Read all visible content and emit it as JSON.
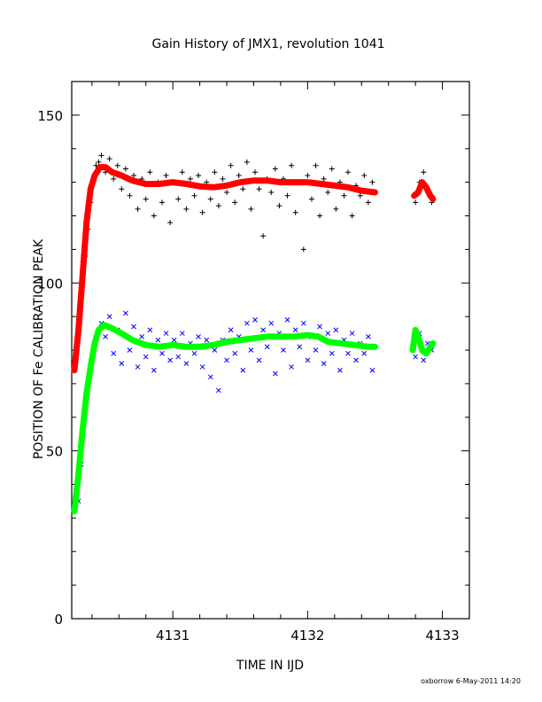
{
  "chart_data": {
    "type": "scatter",
    "title": "Gain History of JMX1, revolution 1041",
    "xlabel": "TIME IN IJD",
    "ylabel": "POSITION OF Fe CALIBRATION PEAK",
    "xlim": [
      4130.25,
      4133.2
    ],
    "ylim": [
      0,
      160
    ],
    "x_ticks": [
      "4131",
      "4132",
      "4133"
    ],
    "y_ticks": [
      "0",
      "50",
      "100",
      "150"
    ],
    "footer": "oxborrow  6-May-2011 14:20",
    "colors": {
      "upper_points": "#000000",
      "upper_smooth": "#ff0000",
      "lower_points": "#0000ff",
      "lower_smooth": "#00ff00"
    },
    "series": [
      {
        "marker": "plus",
        "color": "#000000",
        "points": [
          [
            4130.27,
            75
          ],
          [
            4130.29,
            82
          ],
          [
            4130.31,
            88
          ],
          [
            4130.33,
            100
          ],
          [
            4130.35,
            108
          ],
          [
            4130.37,
            116
          ],
          [
            4130.39,
            124
          ],
          [
            4130.41,
            130
          ],
          [
            4130.43,
            135
          ],
          [
            4130.45,
            136
          ],
          [
            4130.47,
            138
          ],
          [
            4130.5,
            133
          ],
          [
            4130.53,
            137
          ],
          [
            4130.56,
            131
          ],
          [
            4130.59,
            135
          ],
          [
            4130.62,
            128
          ],
          [
            4130.65,
            134
          ],
          [
            4130.68,
            126
          ],
          [
            4130.71,
            132
          ],
          [
            4130.74,
            122
          ],
          [
            4130.77,
            131
          ],
          [
            4130.8,
            125
          ],
          [
            4130.83,
            133
          ],
          [
            4130.86,
            120
          ],
          [
            4130.89,
            130
          ],
          [
            4130.92,
            124
          ],
          [
            4130.95,
            132
          ],
          [
            4130.98,
            118
          ],
          [
            4131.01,
            130
          ],
          [
            4131.04,
            125
          ],
          [
            4131.07,
            133
          ],
          [
            4131.1,
            122
          ],
          [
            4131.13,
            131
          ],
          [
            4131.16,
            126
          ],
          [
            4131.19,
            132
          ],
          [
            4131.22,
            121
          ],
          [
            4131.25,
            130
          ],
          [
            4131.28,
            125
          ],
          [
            4131.31,
            133
          ],
          [
            4131.34,
            123
          ],
          [
            4131.37,
            131
          ],
          [
            4131.4,
            127
          ],
          [
            4131.43,
            135
          ],
          [
            4131.46,
            124
          ],
          [
            4131.49,
            132
          ],
          [
            4131.52,
            128
          ],
          [
            4131.55,
            136
          ],
          [
            4131.58,
            122
          ],
          [
            4131.61,
            133
          ],
          [
            4131.64,
            128
          ],
          [
            4131.67,
            114
          ],
          [
            4131.7,
            131
          ],
          [
            4131.73,
            127
          ],
          [
            4131.76,
            134
          ],
          [
            4131.79,
            123
          ],
          [
            4131.82,
            131
          ],
          [
            4131.85,
            126
          ],
          [
            4131.88,
            135
          ],
          [
            4131.91,
            121
          ],
          [
            4131.94,
            130
          ],
          [
            4131.97,
            110
          ],
          [
            4132.0,
            132
          ],
          [
            4132.03,
            125
          ],
          [
            4132.06,
            135
          ],
          [
            4132.09,
            120
          ],
          [
            4132.12,
            131
          ],
          [
            4132.15,
            127
          ],
          [
            4132.18,
            134
          ],
          [
            4132.21,
            122
          ],
          [
            4132.24,
            130
          ],
          [
            4132.27,
            126
          ],
          [
            4132.3,
            133
          ],
          [
            4132.33,
            120
          ],
          [
            4132.36,
            129
          ],
          [
            4132.39,
            126
          ],
          [
            4132.42,
            132
          ],
          [
            4132.45,
            124
          ],
          [
            4132.48,
            130
          ],
          [
            4132.8,
            124
          ],
          [
            4132.83,
            130
          ],
          [
            4132.86,
            133
          ],
          [
            4132.89,
            127
          ],
          [
            4132.92,
            124
          ]
        ]
      },
      {
        "marker": "cross",
        "color": "#0000ff",
        "points": [
          [
            4130.3,
            35
          ],
          [
            4130.32,
            46
          ],
          [
            4130.34,
            58
          ],
          [
            4130.36,
            66
          ],
          [
            4130.38,
            72
          ],
          [
            4130.4,
            77
          ],
          [
            4130.42,
            81
          ],
          [
            4130.44,
            85
          ],
          [
            4130.47,
            88
          ],
          [
            4130.5,
            84
          ],
          [
            4130.53,
            90
          ],
          [
            4130.56,
            79
          ],
          [
            4130.59,
            86
          ],
          [
            4130.62,
            76
          ],
          [
            4130.65,
            91
          ],
          [
            4130.68,
            80
          ],
          [
            4130.71,
            87
          ],
          [
            4130.74,
            75
          ],
          [
            4130.77,
            84
          ],
          [
            4130.8,
            78
          ],
          [
            4130.83,
            86
          ],
          [
            4130.86,
            74
          ],
          [
            4130.89,
            83
          ],
          [
            4130.92,
            79
          ],
          [
            4130.95,
            85
          ],
          [
            4130.98,
            77
          ],
          [
            4131.01,
            83
          ],
          [
            4131.04,
            78
          ],
          [
            4131.07,
            85
          ],
          [
            4131.1,
            76
          ],
          [
            4131.13,
            82
          ],
          [
            4131.16,
            79
          ],
          [
            4131.19,
            84
          ],
          [
            4131.22,
            75
          ],
          [
            4131.25,
            83
          ],
          [
            4131.28,
            72
          ],
          [
            4131.31,
            80
          ],
          [
            4131.34,
            68
          ],
          [
            4131.37,
            83
          ],
          [
            4131.4,
            77
          ],
          [
            4131.43,
            86
          ],
          [
            4131.46,
            79
          ],
          [
            4131.49,
            84
          ],
          [
            4131.52,
            74
          ],
          [
            4131.55,
            88
          ],
          [
            4131.58,
            80
          ],
          [
            4131.61,
            89
          ],
          [
            4131.64,
            77
          ],
          [
            4131.67,
            86
          ],
          [
            4131.7,
            81
          ],
          [
            4131.73,
            88
          ],
          [
            4131.76,
            73
          ],
          [
            4131.79,
            85
          ],
          [
            4131.82,
            80
          ],
          [
            4131.85,
            89
          ],
          [
            4131.88,
            75
          ],
          [
            4131.91,
            86
          ],
          [
            4131.94,
            81
          ],
          [
            4131.97,
            88
          ],
          [
            4132.0,
            77
          ],
          [
            4132.03,
            84
          ],
          [
            4132.06,
            80
          ],
          [
            4132.09,
            87
          ],
          [
            4132.12,
            76
          ],
          [
            4132.15,
            85
          ],
          [
            4132.18,
            79
          ],
          [
            4132.21,
            86
          ],
          [
            4132.24,
            74
          ],
          [
            4132.27,
            83
          ],
          [
            4132.3,
            79
          ],
          [
            4132.33,
            85
          ],
          [
            4132.36,
            77
          ],
          [
            4132.39,
            82
          ],
          [
            4132.42,
            79
          ],
          [
            4132.45,
            84
          ],
          [
            4132.48,
            74
          ],
          [
            4132.8,
            78
          ],
          [
            4132.83,
            85
          ],
          [
            4132.86,
            77
          ],
          [
            4132.89,
            82
          ],
          [
            4132.92,
            80
          ]
        ]
      }
    ],
    "smooth_series": [
      {
        "color": "#ff0000",
        "segments": [
          [
            [
              4130.27,
              74
            ],
            [
              4130.3,
              86
            ],
            [
              4130.33,
              102
            ],
            [
              4130.36,
              118
            ],
            [
              4130.39,
              128
            ],
            [
              4130.42,
              132
            ],
            [
              4130.46,
              134.5
            ],
            [
              4130.5,
              134.5
            ],
            [
              4130.55,
              133
            ],
            [
              4130.62,
              132
            ],
            [
              4130.7,
              130.5
            ],
            [
              4130.8,
              129.5
            ],
            [
              4130.9,
              129.5
            ],
            [
              4131.0,
              130
            ],
            [
              4131.1,
              129.5
            ],
            [
              4131.2,
              128.8
            ],
            [
              4131.3,
              128.5
            ],
            [
              4131.4,
              129
            ],
            [
              4131.5,
              130
            ],
            [
              4131.6,
              130.5
            ],
            [
              4131.7,
              130.5
            ],
            [
              4131.8,
              130
            ],
            [
              4131.9,
              130
            ],
            [
              4132.0,
              130
            ],
            [
              4132.1,
              129.5
            ],
            [
              4132.2,
              129
            ],
            [
              4132.3,
              128.5
            ],
            [
              4132.4,
              127.5
            ],
            [
              4132.5,
              127
            ]
          ],
          [
            [
              4132.79,
              126
            ],
            [
              4132.82,
              127
            ],
            [
              4132.85,
              130
            ],
            [
              4132.88,
              128.5
            ],
            [
              4132.91,
              126
            ],
            [
              4132.93,
              125
            ]
          ]
        ]
      },
      {
        "color": "#00ff00",
        "segments": [
          [
            [
              4130.27,
              32
            ],
            [
              4130.3,
              43
            ],
            [
              4130.33,
              56
            ],
            [
              4130.36,
              67
            ],
            [
              4130.39,
              75
            ],
            [
              4130.42,
              82
            ],
            [
              4130.45,
              86
            ],
            [
              4130.49,
              87.5
            ],
            [
              4130.55,
              86.5
            ],
            [
              4130.62,
              85
            ],
            [
              4130.7,
              83
            ],
            [
              4130.8,
              81.5
            ],
            [
              4130.9,
              81
            ],
            [
              4131.0,
              81.5
            ],
            [
              4131.1,
              81
            ],
            [
              4131.2,
              81
            ],
            [
              4131.3,
              81.5
            ],
            [
              4131.4,
              82.5
            ],
            [
              4131.5,
              83
            ],
            [
              4131.6,
              83.5
            ],
            [
              4131.7,
              84
            ],
            [
              4131.8,
              84
            ],
            [
              4131.9,
              84
            ],
            [
              4132.0,
              84.5
            ],
            [
              4132.08,
              84
            ],
            [
              4132.15,
              82.5
            ],
            [
              4132.25,
              82
            ],
            [
              4132.35,
              81.5
            ],
            [
              4132.45,
              81
            ],
            [
              4132.5,
              81
            ]
          ],
          [
            [
              4132.78,
              80
            ],
            [
              4132.8,
              86
            ],
            [
              4132.82,
              84
            ],
            [
              4132.85,
              80
            ],
            [
              4132.88,
              79
            ],
            [
              4132.91,
              81
            ],
            [
              4132.93,
              82
            ]
          ]
        ]
      }
    ]
  }
}
